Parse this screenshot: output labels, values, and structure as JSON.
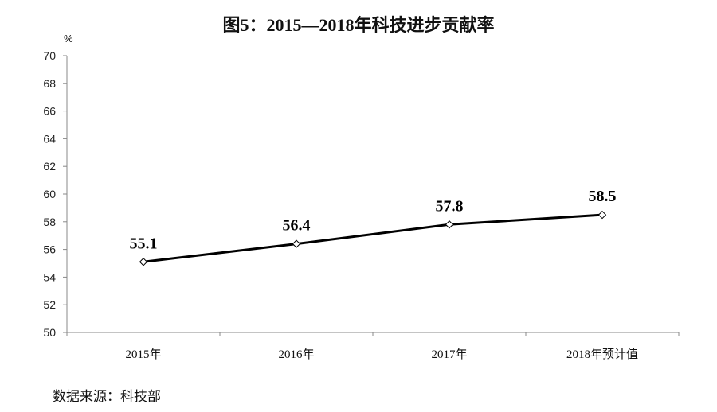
{
  "chart_data": {
    "type": "line",
    "title": "图5：2015—2018年科技进步贡献率",
    "ylabel": "%",
    "xlabel": "",
    "categories": [
      "2015年",
      "2016年",
      "2017年",
      "2018年预计值"
    ],
    "values": [
      55.1,
      56.4,
      57.8,
      58.5
    ],
    "data_labels": [
      "55.1",
      "56.4",
      "57.8",
      "58.5"
    ],
    "ylim": [
      50,
      70
    ],
    "yticks": [
      50,
      52,
      54,
      56,
      58,
      60,
      62,
      64,
      66,
      68,
      70
    ],
    "grid": false,
    "marker": "diamond",
    "line_color": "#000000"
  },
  "source": "数据来源：科技部"
}
